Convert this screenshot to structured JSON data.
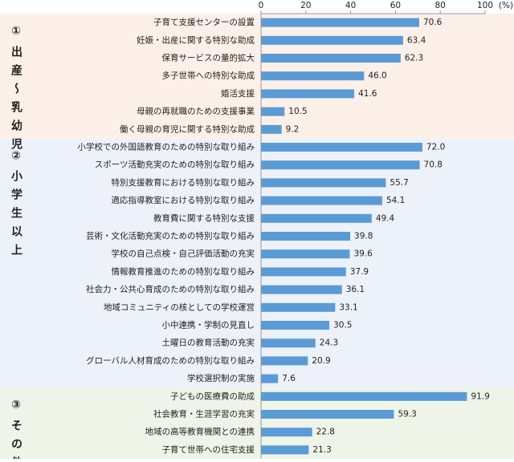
{
  "chart_data": {
    "type": "bar",
    "orientation": "horizontal",
    "color": "#5b9bd5",
    "xlim": [
      0,
      100
    ],
    "xticks": [
      0,
      20,
      40,
      60,
      80,
      100
    ],
    "x_label": "(%)",
    "groups": [
      {
        "number": "①",
        "label": "出産～乳幼児",
        "background": "#fdf0e8",
        "categories": [
          "子育て支援センターの設置",
          "妊娠・出産に関する特別な助成",
          "保育サービスの量的拡大",
          "多子世帯への特別な助成",
          "婚活支援",
          "母親の再就職のための支援事業",
          "働く母親の育児に関する特別な助成"
        ],
        "values": [
          70.6,
          63.4,
          62.3,
          46.0,
          41.6,
          10.5,
          9.2
        ],
        "value_labels": [
          "70.6",
          "63.4",
          "62.3",
          "46.0",
          "41.6",
          "10.5",
          "9.2"
        ]
      },
      {
        "number": "②",
        "label": "小学生以上",
        "background": "#edf1f9",
        "categories": [
          "小学校での外国語教育のための特別な取り組み",
          "スポーツ活動充実のための特別な取り組み",
          "特別支援教育における特別な取り組み",
          "適応指導教室における特別な取り組み",
          "教育費に関する特別な支援",
          "芸術・文化活動充実のための特別な取り組み",
          "学校の自己点検・自己評価活動の充実",
          "情報教育推進のための特別な取り組み",
          "社会力・公共心育成のための特別な取り組み",
          "地域コミュニティの核としての学校運営",
          "小中連携・学制の見直し",
          "土曜日の教育活動の充実",
          "グローバル人材育成のための特別な取り組み",
          "学校選択制の実施"
        ],
        "values": [
          72.0,
          70.8,
          55.7,
          54.1,
          49.4,
          39.8,
          39.6,
          37.9,
          36.1,
          33.1,
          30.5,
          24.3,
          20.9,
          7.6
        ],
        "value_labels": [
          "72.0",
          "70.8",
          "55.7",
          "54.1",
          "49.4",
          "39.8",
          "39.6",
          "37.9",
          "36.1",
          "33.1",
          "30.5",
          "24.3",
          "20.9",
          "7.6"
        ]
      },
      {
        "number": "③",
        "label": "その他",
        "background": "#eef5e8",
        "categories": [
          "子どもの医療費の助成",
          "社会教育・生涯学習の充実",
          "地域の高等教育機関との連携",
          "子育て世帯への住宅支援"
        ],
        "values": [
          91.9,
          59.3,
          22.8,
          21.3
        ],
        "value_labels": [
          "91.9",
          "59.3",
          "22.8",
          "21.3"
        ]
      }
    ]
  }
}
